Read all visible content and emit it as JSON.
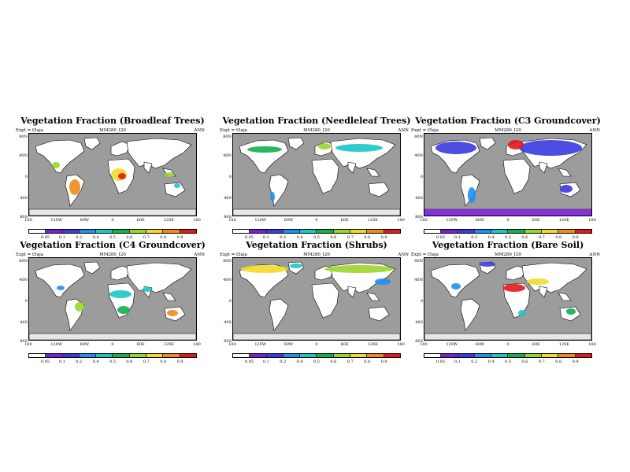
{
  "figure": {
    "panels": [
      {
        "title": "Vegetation Fraction (Broadleaf Trees)",
        "expt": "Expt = t5aja",
        "model": "MM280_I20",
        "period": "ANN"
      },
      {
        "title": "Vegetation Fraction (Needleleaf Trees)",
        "expt": "Expt = t5aja",
        "model": "MM280_I20",
        "period": "ANN"
      },
      {
        "title": "Vegetation Fraction (C3 Groundcover)",
        "expt": "Expt = t5aja",
        "model": "MM280_I20",
        "period": "ANN"
      },
      {
        "title": "Vegetation Fraction (C4 Groundcover)",
        "expt": "Expt = t5aja",
        "model": "MM280_I20",
        "period": "ANN"
      },
      {
        "title": "Vegetation Fraction (Shrubs)",
        "expt": "Expt = t5aja",
        "model": "MM280_I20",
        "period": "ANN"
      },
      {
        "title": "Vegetation Fraction (Bare Soil)",
        "expt": "Expt = t5aja",
        "model": "MM280_I20",
        "period": "ANN"
      }
    ],
    "lat_labels": [
      "80N",
      "40N",
      "0",
      "40S",
      "80S"
    ],
    "lon_labels": [
      "180",
      "120W",
      "60W",
      "0",
      "60E",
      "120E",
      "180"
    ],
    "colorbar": {
      "ticks": [
        "0.05",
        "0.1",
        "0.2",
        "0.4",
        "0.5",
        "0.6",
        "0.7",
        "0.8",
        "0.9"
      ],
      "colors": [
        "#ffffff",
        "#7a1fd6",
        "#3a3ae0",
        "#1f8ff0",
        "#19c7c7",
        "#12b04a",
        "#9ad62a",
        "#f2d92a",
        "#f08a1a",
        "#e01a1a"
      ]
    },
    "colors": {
      "ocean": "#9c9c9c",
      "land": "#ffffff",
      "ice": "#e6e6e6"
    }
  }
}
